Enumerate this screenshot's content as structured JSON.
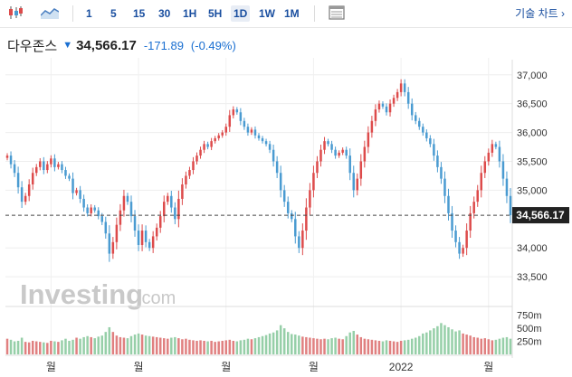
{
  "toolbar": {
    "chart_type_icon": "candlestick-icon",
    "area_icon": "area-chart-icon",
    "intervals": [
      "1",
      "5",
      "15",
      "30",
      "1H",
      "5H",
      "1D",
      "1W",
      "1M"
    ],
    "active_interval": "1D",
    "table_icon": "table-icon",
    "tech_label": "기술 차트 ›"
  },
  "header": {
    "name": "다우존스",
    "price": "34,566.17",
    "change": "-171.89",
    "change_pct": "(-0.49%)"
  },
  "colors": {
    "up": "#dd4b4b",
    "down": "#4a9bd1",
    "vol_up": "#e08080",
    "vol_down": "#96cfa8",
    "price_tag": "#222222"
  },
  "watermark": {
    "brand": "Investing",
    "suffix": ".com"
  },
  "chart_data": {
    "type": "candlestick",
    "y_ticks": [
      "37,000",
      "36,500",
      "36,000",
      "35,500",
      "35,000",
      "34,000",
      "33,500"
    ],
    "y_tick_values": [
      37000,
      36500,
      36000,
      35500,
      35000,
      34000,
      33500
    ],
    "ylim": [
      33000,
      37200
    ],
    "last_price_label": "34,566.17",
    "last_price": 34566.17,
    "volume_ticks": [
      "750m",
      "500m",
      "250m"
    ],
    "volume_tick_values": [
      750,
      500,
      250
    ],
    "volume_max": 900,
    "x_labels": [
      "월",
      "월",
      "월",
      "월",
      "2022",
      "월"
    ],
    "x_label_index": [
      12,
      36,
      60,
      84,
      108,
      132
    ],
    "close": [
      35600,
      35450,
      35300,
      35050,
      34800,
      34900,
      35100,
      35300,
      35400,
      35500,
      35350,
      35450,
      35550,
      35400,
      35450,
      35350,
      35250,
      35200,
      34950,
      35000,
      34850,
      34700,
      34600,
      34700,
      34650,
      34550,
      34450,
      34250,
      33900,
      34100,
      34400,
      34650,
      34900,
      34800,
      34550,
      34300,
      34050,
      34300,
      34100,
      34000,
      34200,
      34350,
      34550,
      34800,
      34900,
      34700,
      34500,
      34850,
      35100,
      35250,
      35350,
      35500,
      35600,
      35700,
      35800,
      35750,
      35850,
      35900,
      35950,
      36000,
      36100,
      36300,
      36400,
      36350,
      36200,
      36100,
      36000,
      36050,
      35950,
      35900,
      35850,
      35800,
      35700,
      35500,
      35300,
      35000,
      34800,
      34600,
      34500,
      34200,
      34000,
      34300,
      34700,
      35000,
      35300,
      35500,
      35700,
      35850,
      35800,
      35700,
      35600,
      35650,
      35700,
      35600,
      35300,
      35000,
      35200,
      35500,
      35750,
      36000,
      36200,
      36400,
      36500,
      36450,
      36350,
      36500,
      36600,
      36700,
      36850,
      36700,
      36500,
      36300,
      36200,
      36100,
      36000,
      35900,
      35800,
      35600,
      35400,
      35200,
      34900,
      34600,
      34300,
      34100,
      33900,
      34000,
      34300,
      34600,
      34800,
      35000,
      35300,
      35500,
      35650,
      35800,
      35750,
      35500,
      35200,
      34900,
      34566.17
    ],
    "volume": [
      300,
      280,
      250,
      260,
      320,
      240,
      230,
      260,
      250,
      240,
      230,
      220,
      260,
      250,
      240,
      270,
      300,
      260,
      280,
      320,
      300,
      330,
      350,
      330,
      310,
      340,
      360,
      430,
      520,
      430,
      360,
      330,
      320,
      310,
      350,
      380,
      400,
      380,
      360,
      350,
      340,
      330,
      320,
      310,
      300,
      320,
      330,
      310,
      290,
      300,
      280,
      270,
      260,
      270,
      260,
      250,
      260,
      240,
      250,
      260,
      270,
      280,
      260,
      250,
      270,
      280,
      300,
      290,
      310,
      330,
      350,
      370,
      400,
      420,
      460,
      560,
      500,
      430,
      390,
      380,
      360,
      340,
      330,
      320,
      310,
      300,
      290,
      300,
      290,
      310,
      320,
      300,
      290,
      350,
      420,
      450,
      380,
      330,
      300,
      290,
      280,
      270,
      260,
      250,
      270,
      260,
      250,
      240,
      260,
      270,
      280,
      300,
      320,
      350,
      400,
      420,
      460,
      500,
      540,
      600,
      560,
      520,
      480,
      440,
      460,
      400,
      380,
      360,
      330,
      320,
      300,
      310,
      290,
      270,
      280,
      300,
      320,
      330,
      300
    ]
  }
}
